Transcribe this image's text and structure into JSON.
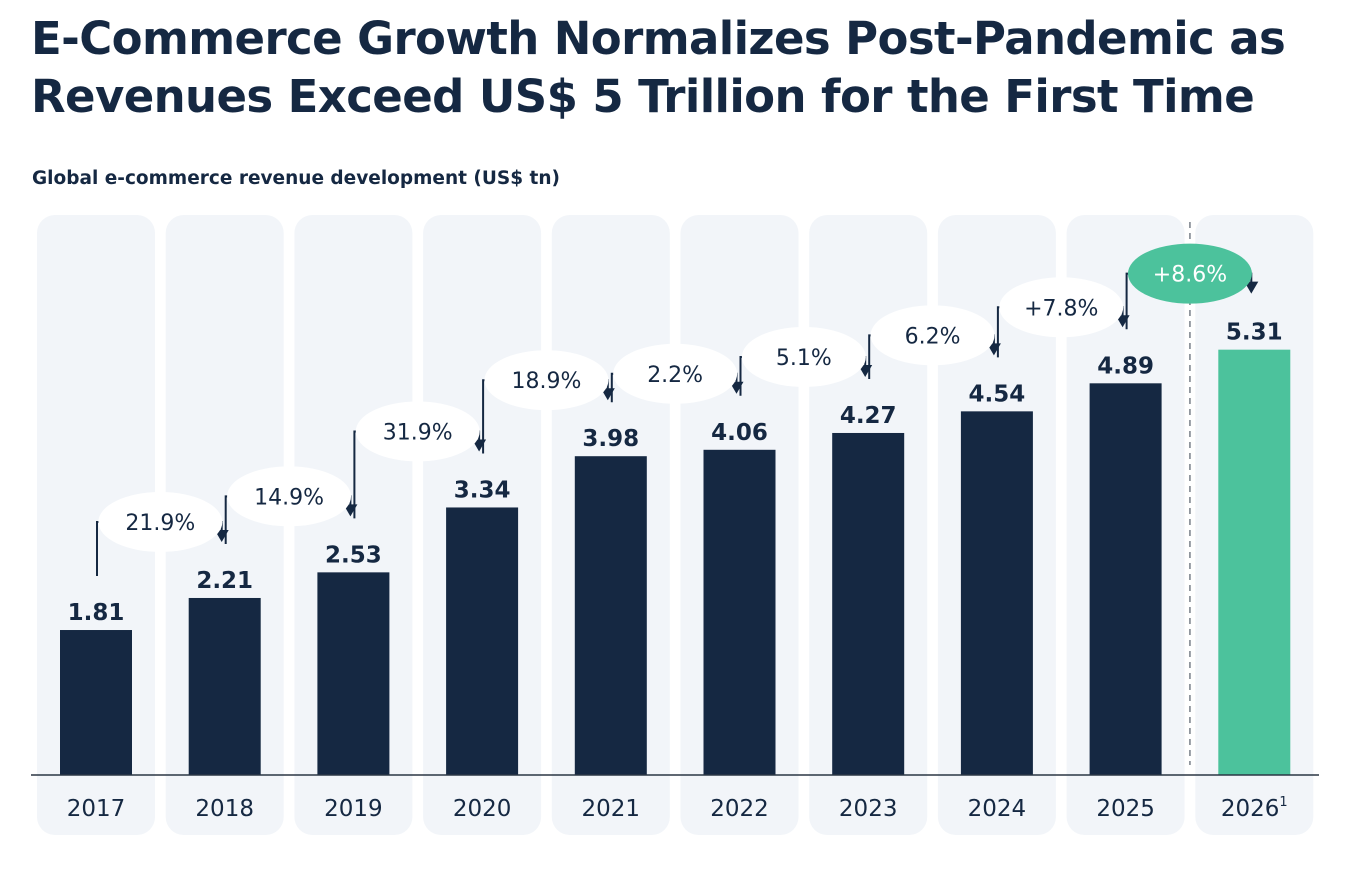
{
  "title": "E-Commerce Growth Normalizes Post-Pandemic as Revenues Exceed US$ 5 Trillion for the First Time",
  "subtitle": "Global e-commerce revenue development (US$ tn)",
  "colors": {
    "bar": "#152842",
    "highlight": "#4cc29c",
    "column_bg": "#f2f5f9",
    "text": "#152842",
    "bubble_bg": "#ffffff",
    "highlight_text": "#ffffff"
  },
  "chart_data": {
    "type": "bar",
    "title": "E-Commerce Growth Normalizes Post-Pandemic as Revenues Exceed US$ 5 Trillion for the First Time",
    "subtitle": "Global e-commerce revenue development (US$ tn)",
    "xlabel": "",
    "ylabel": "US$ tn",
    "categories": [
      "2017",
      "2018",
      "2019",
      "2020",
      "2021",
      "2022",
      "2023",
      "2024",
      "2025",
      "2026"
    ],
    "category_footnotes": [
      "",
      "",
      "",
      "",
      "",
      "",
      "",
      "",
      "",
      "1"
    ],
    "values": [
      1.81,
      2.21,
      2.53,
      3.34,
      3.98,
      4.06,
      4.27,
      4.54,
      4.89,
      5.31
    ],
    "value_labels": [
      "1.81",
      "2.21",
      "2.53",
      "3.34",
      "3.98",
      "4.06",
      "4.27",
      "4.54",
      "4.89",
      "5.31"
    ],
    "highlighted_index": 9,
    "forecast_divider_after_index": 8,
    "growth_rates": [
      "21.9%",
      "14.9%",
      "31.9%",
      "18.9%",
      "2.2%",
      "5.1%",
      "6.2%",
      "+7.8%",
      "+8.6%"
    ],
    "highlighted_growth_index": 8,
    "ylim": [
      0,
      5.6
    ],
    "grid": false,
    "legend": "none"
  }
}
